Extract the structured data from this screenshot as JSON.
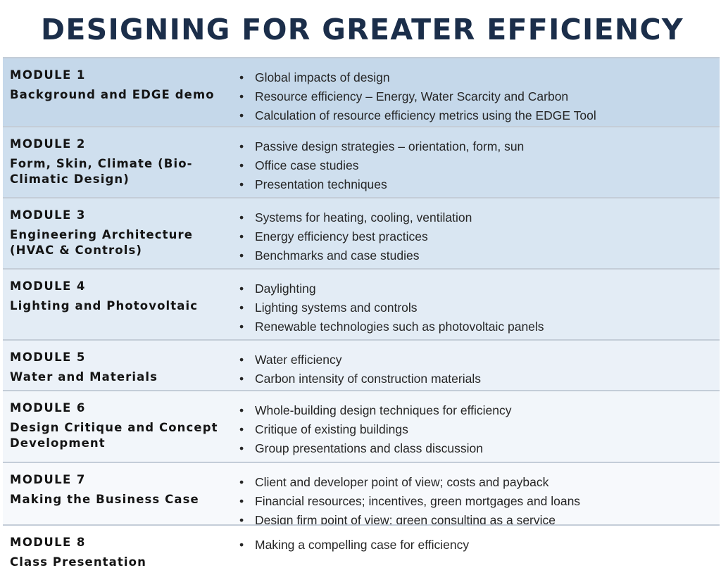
{
  "title": "DESIGNING FOR GREATER EFFICIENCY",
  "modules": [
    {
      "number": "MODULE 1",
      "name": "Background and EDGE demo",
      "bullets": [
        "Global impacts of design",
        "Resource efficiency – Energy, Water Scarcity and Carbon",
        "Calculation of resource efficiency metrics using the EDGE Tool"
      ],
      "bg": "#c5d8ea"
    },
    {
      "number": "MODULE 2",
      "name": "Form, Skin, Climate (Bio-Climatic Design)",
      "bullets": [
        "Passive design strategies – orientation, form, sun",
        "Office case studies",
        "Presentation techniques"
      ],
      "bg": "#cfdfee"
    },
    {
      "number": "MODULE 3",
      "name": "Engineering Architecture (HVAC & Controls)",
      "bullets": [
        "Systems for heating, cooling, ventilation",
        "Energy efficiency best practices",
        "Benchmarks and case studies"
      ],
      "bg": "#d9e6f2"
    },
    {
      "number": "MODULE 4",
      "name": "Lighting and Photovoltaic",
      "bullets": [
        "Daylighting",
        "Lighting systems and controls",
        "Renewable technologies such as photovoltaic panels"
      ],
      "bg": "#e3ecf5"
    },
    {
      "number": "MODULE 5",
      "name": "Water and Materials",
      "bullets": [
        "Water efficiency",
        "Carbon intensity of construction materials"
      ],
      "bg": "#ebf1f8"
    },
    {
      "number": "MODULE 6",
      "name": "Design Critique and Concept Development",
      "bullets": [
        "Whole-building design techniques for efficiency",
        "Critique of existing buildings",
        "Group presentations and class discussion"
      ],
      "bg": "#f2f6fa"
    },
    {
      "number": "MODULE 7",
      "name": "Making the Business Case",
      "bullets": [
        "Client and developer point of view; costs and payback",
        "Financial resources; incentives, green mortgages and loans",
        "Design firm point of view; green consulting as a service"
      ],
      "bg": "#f7f9fc"
    },
    {
      "number": "MODULE 8",
      "name": "Class Presentation",
      "bullets": [
        "Making a compelling case for efficiency"
      ],
      "bg": "#ffffff"
    }
  ]
}
